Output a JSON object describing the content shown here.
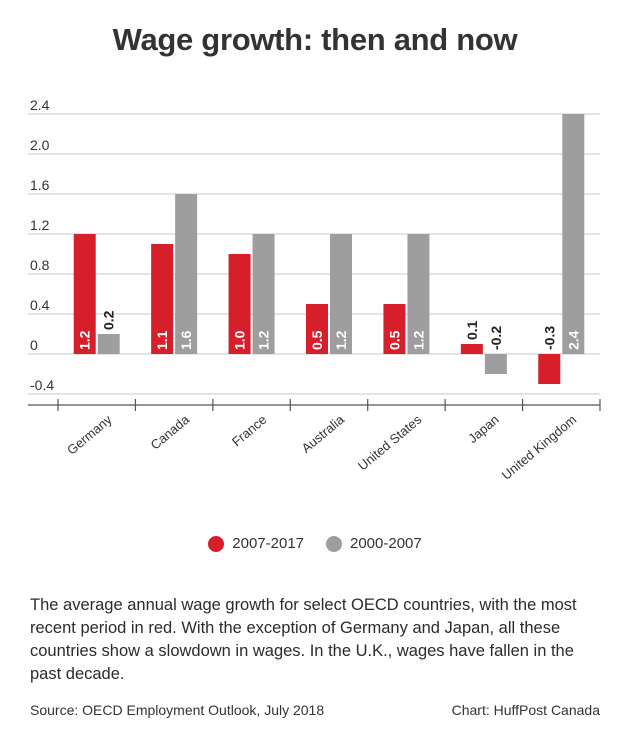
{
  "title": "Wage growth: then and now",
  "chart_data": {
    "type": "bar",
    "categories": [
      "Germany",
      "Canada",
      "France",
      "Australia",
      "United States",
      "Japan",
      "United Kingdom"
    ],
    "series": [
      {
        "name": "2007-2017",
        "color": "#d71f2b",
        "values": [
          1.2,
          1.1,
          1.0,
          0.5,
          0.5,
          0.1,
          -0.3
        ],
        "labels": [
          "1.2",
          "1.1",
          "1.0",
          "0.5",
          "0.5",
          "0.1",
          "-0.3"
        ]
      },
      {
        "name": "2000-2007",
        "color": "#9e9e9e",
        "values": [
          0.2,
          1.6,
          1.2,
          1.2,
          1.2,
          -0.2,
          2.4
        ],
        "labels": [
          "0.2",
          "1.6",
          "1.2",
          "1.2",
          "1.2",
          "-0.2",
          "2.4"
        ]
      }
    ],
    "yticks": [
      "2.4",
      "2.0",
      "1.6",
      "1.2",
      "0.8",
      "0.4",
      "0",
      "-0.4"
    ],
    "ylim": [
      -0.4,
      2.4
    ],
    "grid": true,
    "legend": "bottom-center"
  },
  "legend": {
    "item1": "2007-2017",
    "item2": "2000-2007"
  },
  "description": "The average annual wage growth for select OECD countries, with the most recent period in red. With the exception of Germany and Japan, all these countries show a slowdown in wages. In the U.K., wages have fallen in the past decade.",
  "source": "Source: OECD Employment Outlook, July 2018",
  "credit": "Chart: HuffPost Canada"
}
